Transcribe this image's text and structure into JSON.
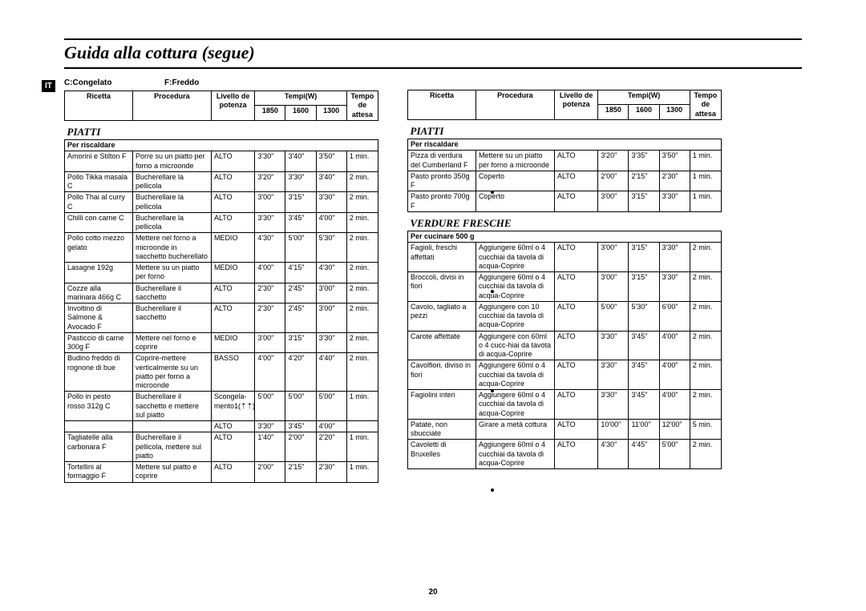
{
  "title": "Guida alla cottura (segue)",
  "lang_tag": "IT",
  "legend": {
    "c": "C:Congelato",
    "f": "F:Freddo"
  },
  "headers": {
    "ricetta": "Ricetta",
    "procedura": "Procedura",
    "livello": "Livello de\npotenza",
    "livello2": "Livello\nde\npotenza",
    "tempi": "Tempi(W)",
    "w1": "1850",
    "w2": "1600",
    "w3": "1300",
    "tempo": "Tempo\nde\nattesa"
  },
  "sections": {
    "piatti": "PIATTI",
    "verdure": "VERDURE FRESCHE",
    "per_risc": "Per riscaldare",
    "per_cuc": "Per cucinare 500 g"
  },
  "left": [
    {
      "r": "Amorini e Stilton F",
      "p": "Porre su un piatto per forno a microonde",
      "l": "ALTO",
      "t": [
        "3'30\"",
        "3'40\"",
        "3'50\""
      ],
      "a": "1 min."
    },
    {
      "r": "Pollo Tikka masala C",
      "p": "Bucherellare la pellicola",
      "l": "ALTO",
      "t": [
        "3'20\"",
        "3'30\"",
        "3'40\""
      ],
      "a": "2 min."
    },
    {
      "r": "Pollo Thai al curry C",
      "p": "Bucherellare la pellicola",
      "l": "ALTO",
      "t": [
        "3'00\"",
        "3'15\"",
        "3'30\""
      ],
      "a": "2 min."
    },
    {
      "r": "Chilli con carne C",
      "p": "Bucherellare la pellicola",
      "l": "ALTO",
      "t": [
        "3'30\"",
        "3'45\"",
        "4'00\""
      ],
      "a": "2 min."
    },
    {
      "r": "Pollo cotto mezzo gelato",
      "p": "Mettere nel forno a microonde in sacchetto bucherellato",
      "l": "MEDIO",
      "t": [
        "4'30\"",
        "5'00\"",
        "5'30\""
      ],
      "a": "2 min."
    },
    {
      "r": "Lasagne 192g",
      "p": "Mettere su un piatto per forno",
      "l": "MEDIO",
      "t": [
        "4'00\"",
        "4'15\"",
        "4'30\""
      ],
      "a": "2 min."
    },
    {
      "r": "Cozze alla marinara 466g C",
      "p": "Bucherellare il sacchetto",
      "l": "ALTO",
      "t": [
        "2'30\"",
        "2'45\"",
        "3'00\""
      ],
      "a": "2 min."
    },
    {
      "r": "Involtino di Salmone & Avocado F",
      "p": "Bucherellare il sacchetto",
      "l": "ALTO",
      "t": [
        "2'30\"",
        "2'45\"",
        "3'00\""
      ],
      "a": "2 min."
    },
    {
      "r": "Pasticcio di carne 300g F",
      "p": "Mettere nel forno e coprire",
      "l": "MEDIO",
      "t": [
        "3'00\"",
        "3'15\"",
        "3'30\""
      ],
      "a": "2 min."
    },
    {
      "r": "Budino freddo di rognone di bue",
      "p": "Coprire-mettere verticalmente su un piatto per forno a microonde",
      "l": "BASSO",
      "t": [
        "4'00\"",
        "4'20\"",
        "4'40\""
      ],
      "a": "2 min."
    },
    {
      "r": "Pollo in pesto rosso 312g C",
      "p": "Bucherellare il sacchetto e mettere sul piatto",
      "l": "Scongela-\nmento1(⇡⇡)",
      "t": [
        "5'00\"",
        "5'00\"",
        "5'00\""
      ],
      "a": "1 min.",
      "extra": {
        "l": "ALTO",
        "t": [
          "3'30\"",
          "3'45\"",
          "4'00\""
        ]
      }
    },
    {
      "r": "Tagliatelle alla carbonara F",
      "p": "Bucherellare il pellicola, mettere sul piatto",
      "l": "ALTO",
      "t": [
        "1'40\"",
        "2'00\"",
        "2'20\""
      ],
      "a": "1 min."
    },
    {
      "r": "Tortellini al formaggio F",
      "p": "Mettere sul piatto e coprire",
      "l": "ALTO",
      "t": [
        "2'00\"",
        "2'15\"",
        "2'30\""
      ],
      "a": "1 min."
    }
  ],
  "right_piatti": [
    {
      "r": "Pizza di verdura del Cumberland F",
      "p": "Mettere su un piatto per forno a microonde",
      "l": "ALTO",
      "t": [
        "3'20\"",
        "3'35\"",
        "3'50\""
      ],
      "a": "1 min."
    },
    {
      "r": "Pasto pronto 350g F",
      "p": "Coperto",
      "l": "ALTO",
      "t": [
        "2'00\"",
        "2'15\"",
        "2'30\""
      ],
      "a": "1 min."
    },
    {
      "r": "Pasto pronto 700g F",
      "p": "Coperto",
      "l": "ALTO",
      "t": [
        "3'00\"",
        "3'15\"",
        "3'30\""
      ],
      "a": "1 min."
    }
  ],
  "right_verdure": [
    {
      "r": "Fagioli, freschi affettati",
      "p": "Aggiungere 60ml o 4 cucchiai da tavola di acqua-Coprire",
      "l": "ALTO",
      "t": [
        "3'00\"",
        "3'15\"",
        "3'30\""
      ],
      "a": "2 min."
    },
    {
      "r": "Broccoli, divisi in fiori",
      "p": "Aggiungere 60ml o 4 cucchiai da tavola di acqua-Coprire",
      "l": "ALTO",
      "t": [
        "3'00\"",
        "3'15\"",
        "3'30\""
      ],
      "a": "2 min."
    },
    {
      "r": "Cavolo, tagliato a pezzi",
      "p": "Aggiungere con 10 cucchiai da tavola di acqua-Coprire",
      "l": "ALTO",
      "t": [
        "5'00\"",
        "5'30\"",
        "6'00\""
      ],
      "a": "2 min."
    },
    {
      "r": "Carote affettate",
      "p": "Aggiungere con 60ml o 4 cucc-hiai da tavota di acqua-Coprire",
      "l": "ALTO",
      "t": [
        "3'30\"",
        "3'45\"",
        "4'00\""
      ],
      "a": "2 min."
    },
    {
      "r": "Cavolfiori, diviso in fiori",
      "p": "Aggiungere 60ml o 4 cucchiai da tavola di acqua-Coprire",
      "l": "ALTO",
      "t": [
        "3'30\"",
        "3'45\"",
        "4'00\""
      ],
      "a": "2 min."
    },
    {
      "r": "Fagiolini interi",
      "p": "Aggiungere 60ml o 4 cucchiai da tavola di acqua-Coprire",
      "l": "ALTO",
      "t": [
        "3'30\"",
        "3'45\"",
        "4'00\""
      ],
      "a": "2 min."
    },
    {
      "r": "Patate, non sbucciate",
      "p": "Girare a metà cottura",
      "l": "ALTO",
      "t": [
        "10'00\"",
        "11'00\"",
        "12'00\""
      ],
      "a": "5 min."
    },
    {
      "r": "Cavoletti di Bruxelles",
      "p": "Aggiungere 60ml o 4 cucchiai da tavola di acqua-Coprire",
      "l": "ALTO",
      "t": [
        "4'30\"",
        "4'45\"",
        "5'00\""
      ],
      "a": "2 min."
    }
  ],
  "pagenum": "20"
}
